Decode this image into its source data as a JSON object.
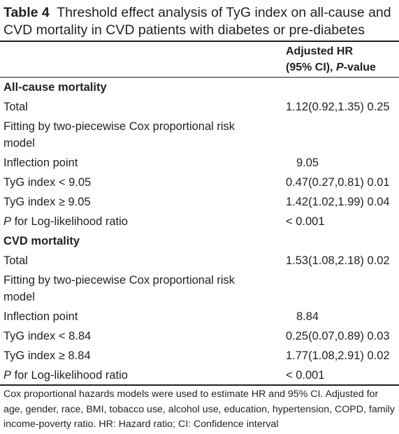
{
  "caption": {
    "label": "Table 4",
    "text": "Threshold effect analysis of TyG index on all-cause and CVD mortality in CVD patients with diabetes or pre-diabetes"
  },
  "header": {
    "line1": "Adjusted HR",
    "line2_prefix": "(95% CI), ",
    "line2_italic": "P",
    "line2_suffix": "-value"
  },
  "sections": [
    {
      "title": "All-cause mortality",
      "rows": [
        {
          "label": "Total",
          "value": "1.12(0.92,1.35) 0.25"
        },
        {
          "label": "Fitting by two-piecewise Cox proportional risk model",
          "value": ""
        },
        {
          "label": "Inflection point",
          "value": "9.05"
        },
        {
          "label": "TyG index < 9.05",
          "value": "0.47(0.27,0.81) 0.01"
        },
        {
          "label": "TyG index ≥ 9.05",
          "value": "1.42(1.02,1.99) 0.04"
        },
        {
          "label_italic": "P",
          "label_rest": " for Log-likelihood ratio",
          "value": "< 0.001"
        }
      ]
    },
    {
      "title": "CVD mortality",
      "rows": [
        {
          "label": "Total",
          "value": "1.53(1.08,2.18) 0.02"
        },
        {
          "label": "Fitting by two-piecewise Cox proportional risk model",
          "value": ""
        },
        {
          "label": "Inflection point",
          "value": "8.84"
        },
        {
          "label": "TyG index < 8.84",
          "value": "0.25(0.07,0.89) 0.03"
        },
        {
          "label": "TyG index ≥ 8.84",
          "value": "1.77(1.08,2.91) 0.02"
        },
        {
          "label_italic": "P",
          "label_rest": " for Log-likelihood ratio",
          "value": "< 0.001"
        }
      ]
    }
  ],
  "footnote": "Cox proportional hazards models were used to estimate HR and 95% CI. Adjusted for age, gender, race, BMI, tobacco use, alcohol use, education, hypertension, COPD, family income-poverty ratio. HR: Hazard ratio; CI: Confidence interval"
}
